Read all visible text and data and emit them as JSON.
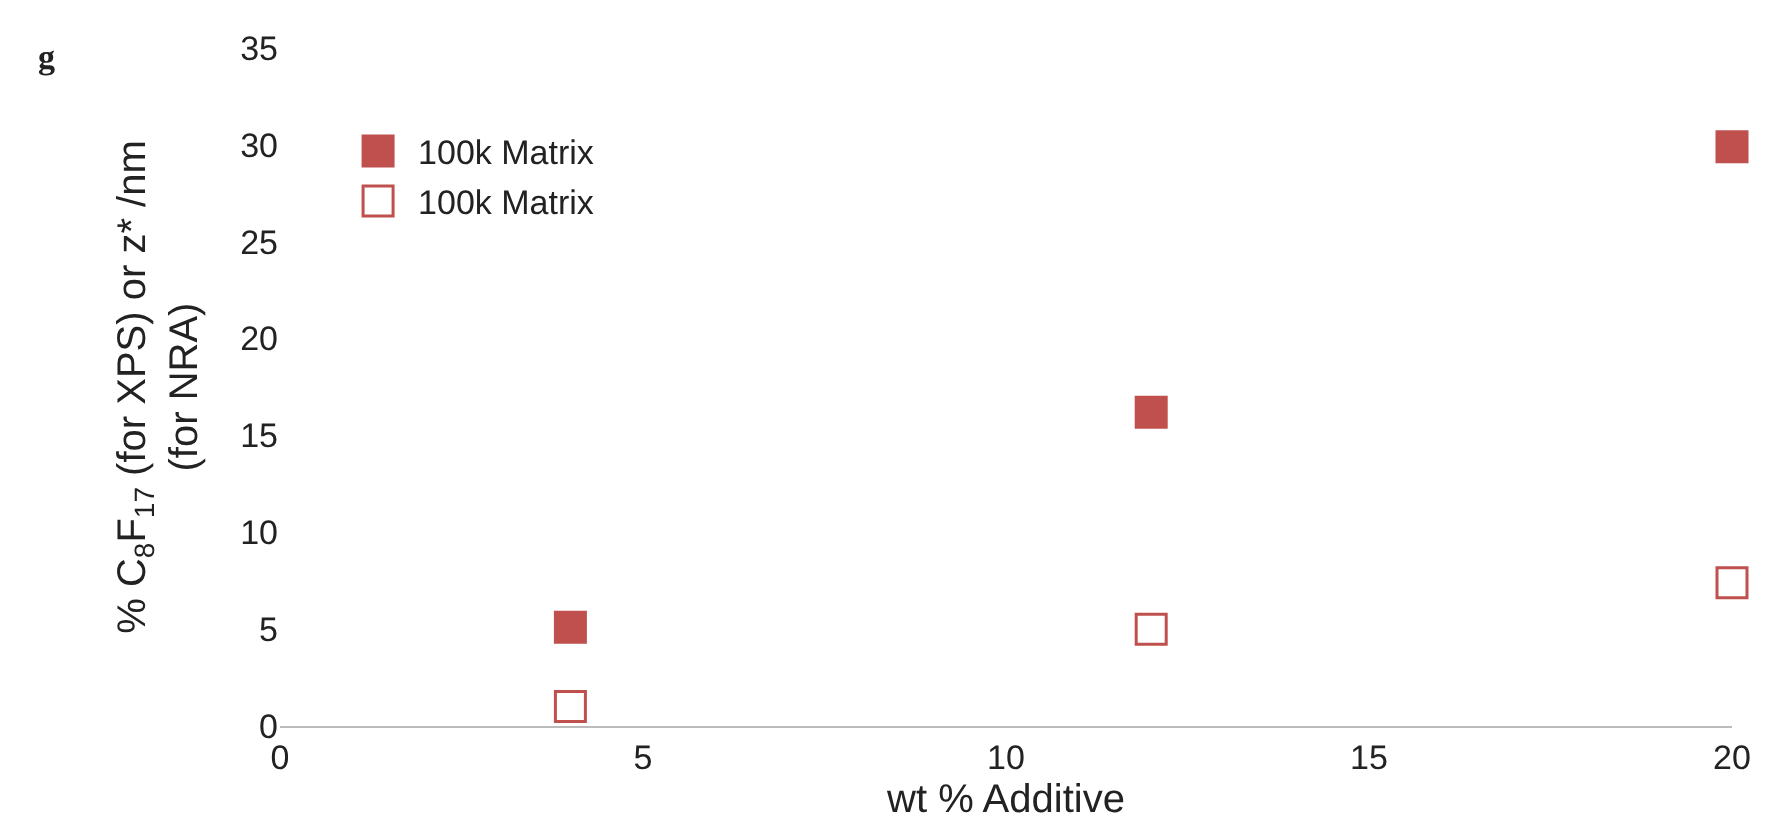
{
  "chart_data": {
    "type": "scatter",
    "x": [
      4,
      12,
      20
    ],
    "series": [
      {
        "name": "100k Matrix",
        "color": "#c0504d",
        "marker": "square",
        "values": [
          5.1,
          16.2,
          29.9
        ]
      },
      {
        "name": "100k Matrix",
        "color": "#c0504d",
        "marker": "square-open",
        "values": [
          1.0,
          5.0,
          7.4
        ]
      }
    ],
    "xlabel": "wt % Additive",
    "ylabel": "% C$_{8}$F$_{17}$ (for XPS) or z* /nm\n(for NRA)",
    "annotations": [
      "g"
    ],
    "xlim": [
      0,
      20
    ],
    "xticks": [
      0,
      5,
      10,
      15,
      20
    ],
    "ylim": [
      0,
      35
    ],
    "yticks": [
      0,
      5,
      10,
      15,
      20,
      25,
      30,
      35
    ],
    "legend": "top left"
  }
}
